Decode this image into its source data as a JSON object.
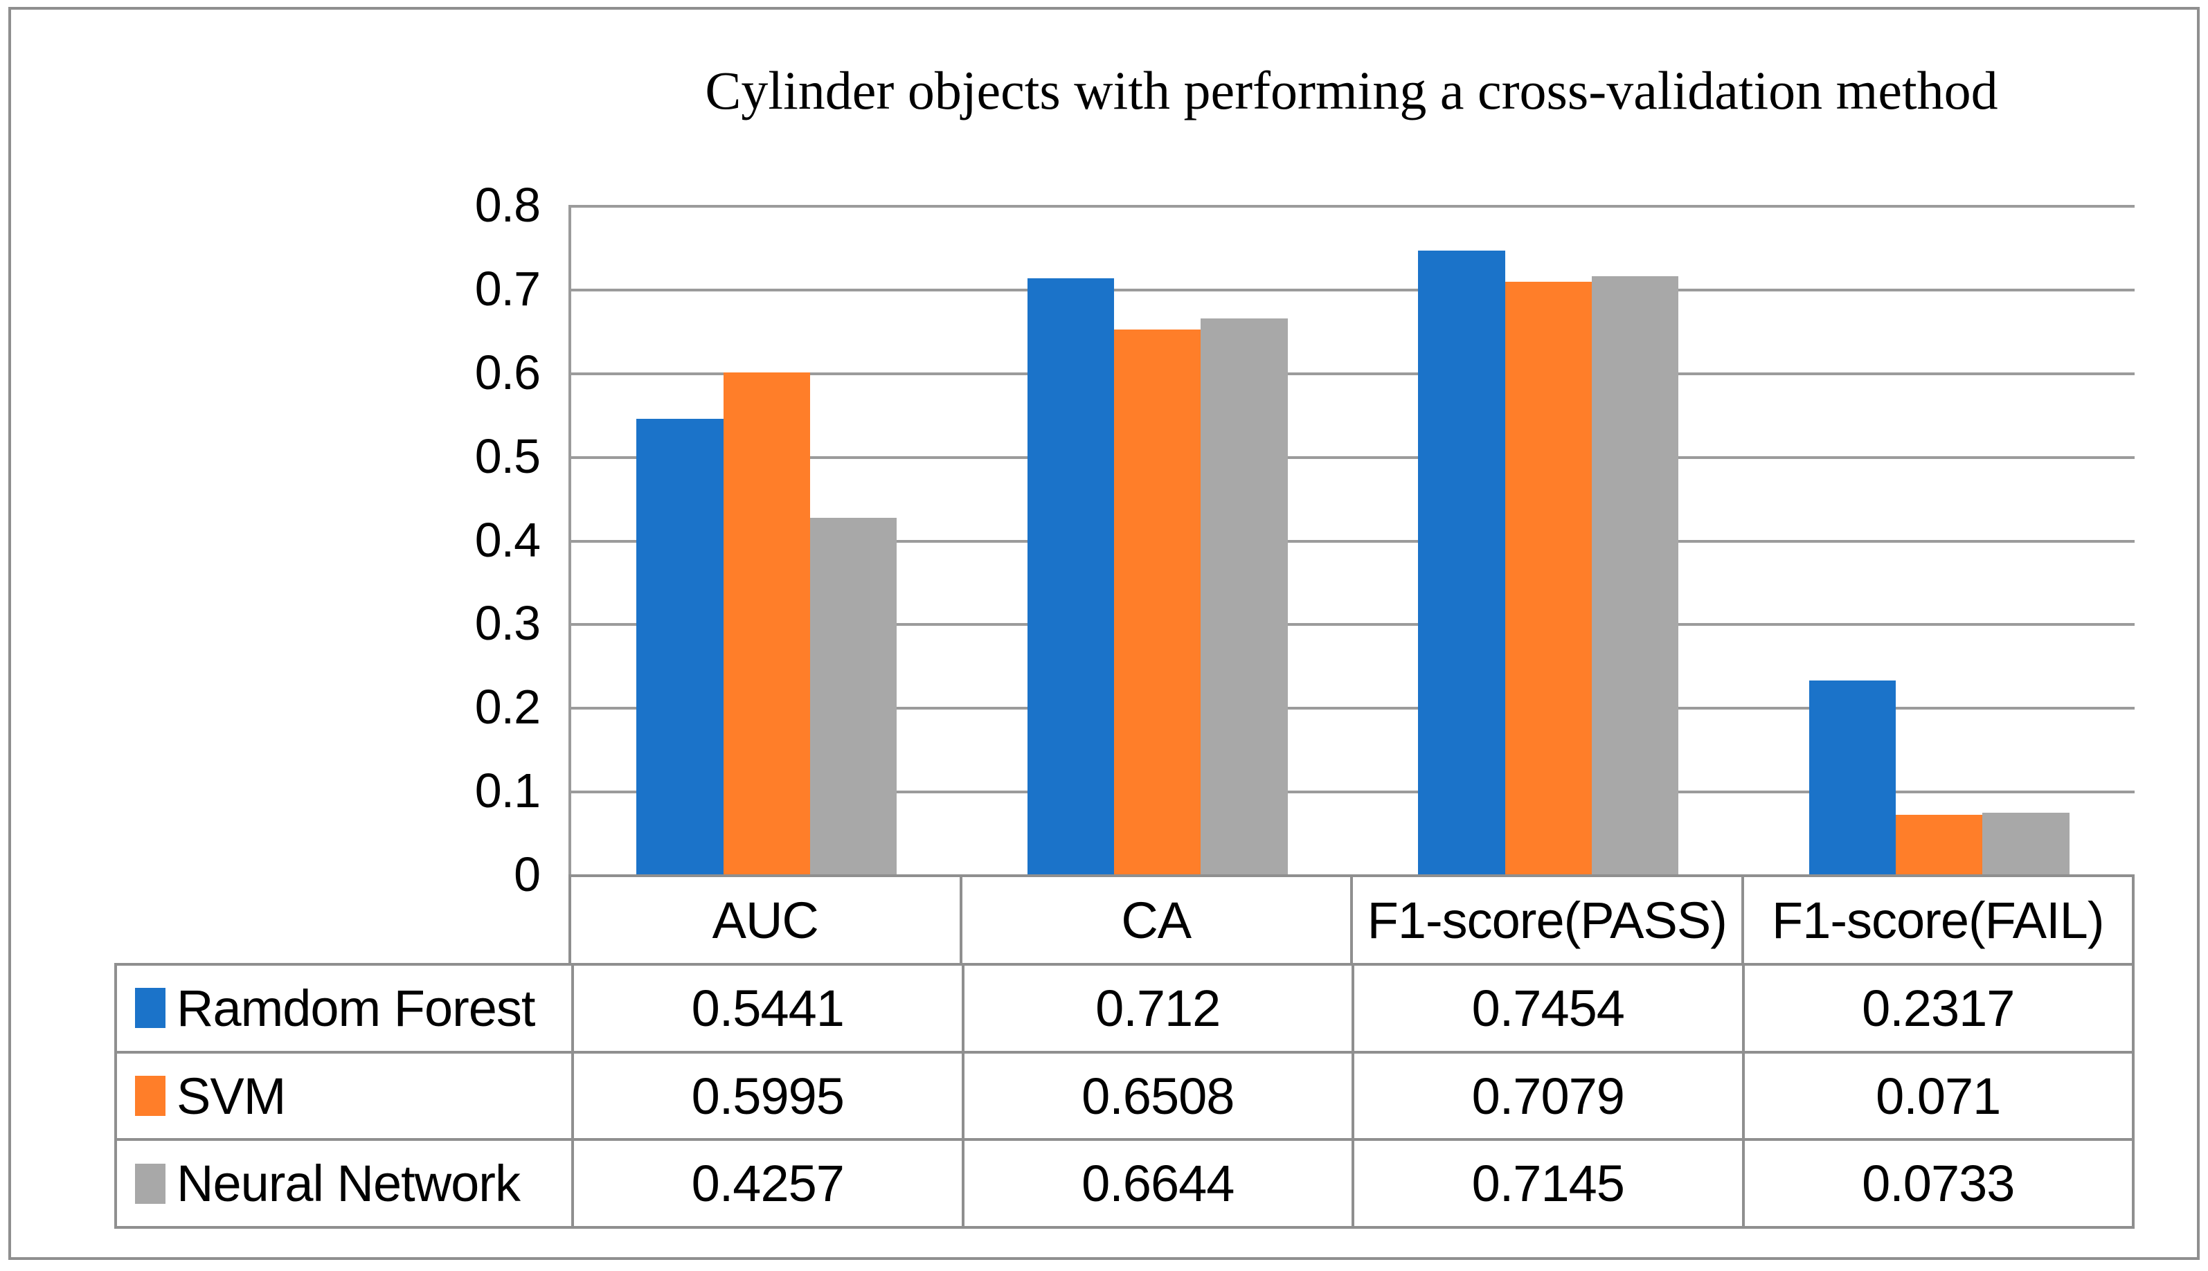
{
  "chart_data": {
    "type": "bar",
    "title": "Cylinder objects with performing a cross-validation method",
    "categories": [
      "AUC",
      "CA",
      "F1-score(PASS)",
      "F1-score(FAIL)"
    ],
    "series": [
      {
        "name": "Ramdom Forest",
        "color": "#1b73c9",
        "values": [
          0.5441,
          0.712,
          0.7454,
          0.2317
        ]
      },
      {
        "name": "SVM",
        "color": "#ff7e29",
        "values": [
          0.5995,
          0.6508,
          0.7079,
          0.071
        ]
      },
      {
        "name": "Neural Network",
        "color": "#a8a8a8",
        "values": [
          0.4257,
          0.6644,
          0.7145,
          0.0733
        ]
      }
    ],
    "y_axis": {
      "min": 0,
      "max": 0.8,
      "step": 0.1,
      "tick_labels": [
        "0.8",
        "0.7",
        "0.6",
        "0.5",
        "0.4",
        "0.3",
        "0.2",
        "0.1",
        "0"
      ]
    },
    "grid": true,
    "legend_position": "table-left",
    "colors": {
      "grid": "#9b9b9b",
      "border": "#8f8f8f"
    }
  },
  "table": {
    "value_labels": [
      [
        "0.5441",
        "0.712",
        "0.7454",
        "0.2317"
      ],
      [
        "0.5995",
        "0.6508",
        "0.7079",
        "0.071"
      ],
      [
        "0.4257",
        "0.6644",
        "0.7145",
        "0.0733"
      ]
    ]
  }
}
